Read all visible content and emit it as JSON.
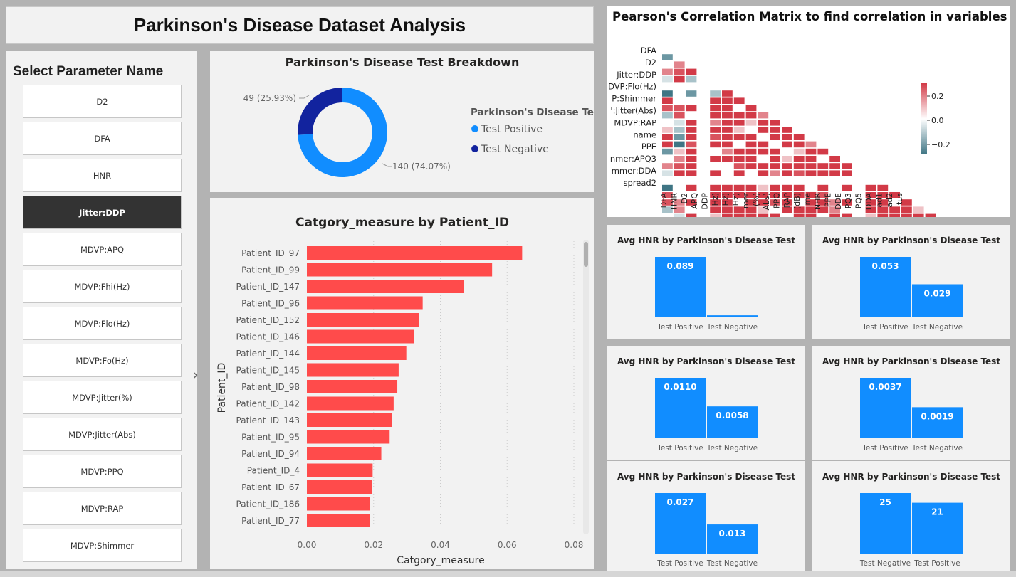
{
  "dashboard": {
    "title": "Parkinson's Disease Dataset Analysis"
  },
  "slicer": {
    "title": "Select Parameter Name",
    "items": [
      "D2",
      "DFA",
      "HNR",
      "Jitter:DDP",
      "MDVP:APQ",
      "MDVP:Fhi(Hz)",
      "MDVP:Flo(Hz)",
      "MDVP:Fo(Hz)",
      "MDVP:Jitter(%)",
      "MDVP:Jitter(Abs)",
      "MDVP:PPQ",
      "MDVP:RAP",
      "MDVP:Shimmer"
    ],
    "selected": "Jitter:DDP"
  },
  "donut": {
    "title": "Parkinson's Disease Test Breakdown",
    "legend_title": "Parkinson's Disease Te...",
    "chart_data": {
      "type": "pie",
      "slices": [
        {
          "name": "Test Positive",
          "value": 140,
          "label": "140 (74.07%)",
          "color": "#118dff"
        },
        {
          "name": "Test Negative",
          "value": 49,
          "label": "49 (25.93%)",
          "color": "#12239e"
        }
      ]
    }
  },
  "bar": {
    "title": "Catgory_measure by Patient_ID",
    "chart_data": {
      "type": "bar",
      "orientation": "horizontal",
      "xlabel": "Catgory_measure",
      "ylabel": "Patient_ID",
      "xlim": [
        0,
        0.08
      ],
      "xticks": [
        "0.00",
        "0.02",
        "0.04",
        "0.06",
        "0.08"
      ],
      "color": "#ff4b4b",
      "categories": [
        "Patient_ID_97",
        "Patient_ID_99",
        "Patient_ID_147",
        "Patient_ID_96",
        "Patient_ID_152",
        "Patient_ID_146",
        "Patient_ID_144",
        "Patient_ID_145",
        "Patient_ID_98",
        "Patient_ID_142",
        "Patient_ID_143",
        "Patient_ID_95",
        "Patient_ID_94",
        "Patient_ID_4",
        "Patient_ID_67",
        "Patient_ID_186",
        "Patient_ID_77"
      ],
      "values": [
        0.0645,
        0.0555,
        0.047,
        0.0347,
        0.0335,
        0.0322,
        0.0298,
        0.0275,
        0.0271,
        0.026,
        0.0254,
        0.0248,
        0.0223,
        0.0197,
        0.0195,
        0.0189,
        0.0188
      ]
    }
  },
  "corr": {
    "title": "Pearson's Correlation Matrix to find correlation in variables",
    "row_labels": [
      "DFA",
      "D2",
      "Jitter:DDP",
      "DVP:Flo(Hz)",
      "P:Shimmer",
      "':Jitter(Abs)",
      "MDVP:RAP",
      "name",
      "PPE",
      "nmer:APQ3",
      "mmer:DDA",
      "spread2"
    ],
    "col_labels": [
      "DFA",
      "HNR",
      "D2",
      "APQ",
      "DDP",
      "Hz)",
      "Hz)",
      "Hz)",
      "mer",
      "(%)",
      "Abs)",
      "PPQ",
      "RAP",
      "(dB)",
      "me",
      "NHR",
      "PPE",
      "DDE",
      "PQ3",
      "PQ5",
      "DDA",
      "ad1",
      "ad2",
      "tus"
    ],
    "colorbar_ticks": [
      "0.2",
      "0.0",
      "−0.2"
    ],
    "chart_data": {
      "type": "heatmap",
      "size": 24,
      "colorscale": [
        "#3f7584",
        "#ffffff",
        "#d23a47"
      ],
      "range": [
        -0.3,
        0.3
      ]
    }
  },
  "mini_charts": [
    {
      "title": "Avg HNR by Parkinson's Disease Test",
      "chart_data": {
        "type": "bar",
        "categories": [
          "Test Positive",
          "Test Negative"
        ],
        "values": [
          0.089,
          0.003
        ],
        "labels": [
          "0.089",
          ""
        ]
      }
    },
    {
      "title": "Avg HNR by Parkinson's Disease Test",
      "chart_data": {
        "type": "bar",
        "categories": [
          "Test Positive",
          "Test Negative"
        ],
        "values": [
          0.053,
          0.029
        ],
        "labels": [
          "0.053",
          "0.029"
        ]
      }
    },
    {
      "title": "Avg HNR by Parkinson's Disease Test",
      "chart_data": {
        "type": "bar",
        "categories": [
          "Test Positive",
          "Test Negative"
        ],
        "values": [
          0.011,
          0.0058
        ],
        "labels": [
          "0.0110",
          "0.0058"
        ]
      }
    },
    {
      "title": "Avg HNR by Parkinson's Disease Test",
      "chart_data": {
        "type": "bar",
        "categories": [
          "Test Positive",
          "Test Negative"
        ],
        "values": [
          0.0037,
          0.0019
        ],
        "labels": [
          "0.0037",
          "0.0019"
        ]
      }
    },
    {
      "title": "Avg HNR by Parkinson's Disease Test",
      "chart_data": {
        "type": "bar",
        "categories": [
          "Test Positive",
          "Test Negative"
        ],
        "values": [
          0.027,
          0.013
        ],
        "labels": [
          "0.027",
          "0.013"
        ]
      }
    },
    {
      "title": "Avg HNR by Parkinson's Disease Test",
      "chart_data": {
        "type": "bar",
        "categories": [
          "Test Negative",
          "Test Positive"
        ],
        "values": [
          25,
          21
        ],
        "labels": [
          "25",
          "21"
        ]
      }
    }
  ],
  "colors": {
    "accent": "#118dff",
    "bar_red": "#ff4b4b"
  }
}
